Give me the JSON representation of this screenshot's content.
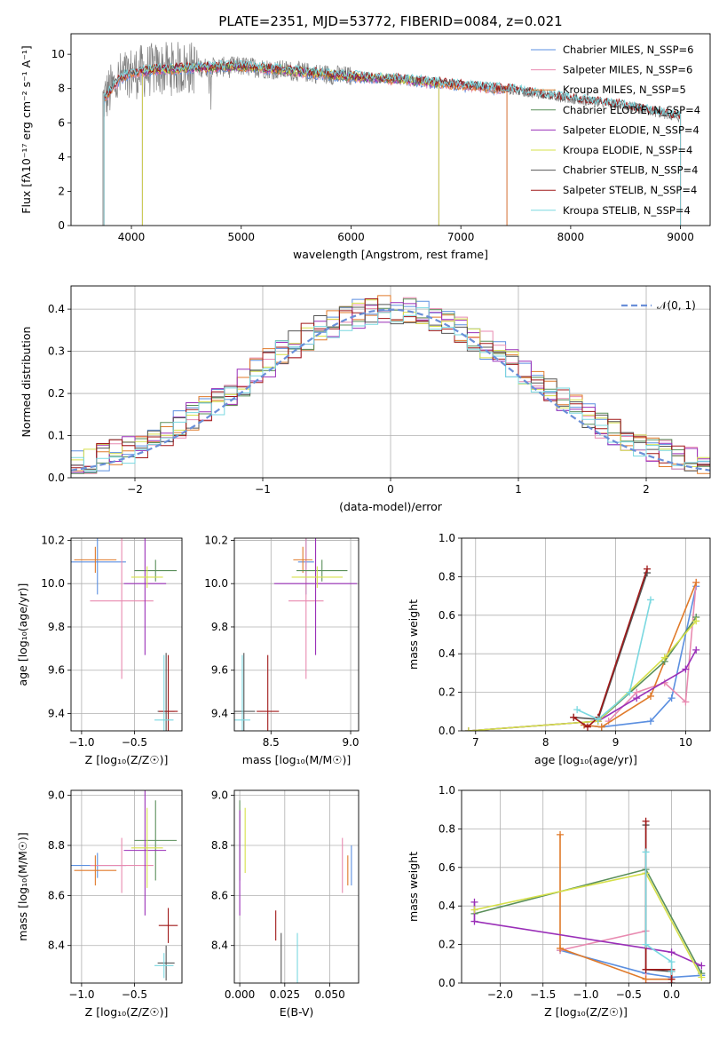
{
  "figure": {
    "title": "PLATE=2351, MJD=53772, FIBERID=0084, z=0.021"
  },
  "colors": {
    "Chabrier MILES": "#5b8fe0",
    "Salpeter MILES": "#e88ab0",
    "Kroupa MILES": "#e07a2a",
    "Chabrier ELODIE": "#5a8f5a",
    "Salpeter ELODIE": "#9a2fb8",
    "Kroupa ELODIE": "#d6e04a",
    "Chabrier STELIB": "#555555",
    "Salpeter STELIB": "#a01818",
    "Kroupa STELIB": "#7ad8e0",
    "normal": "#6a8fd8"
  },
  "chart_data": [
    {
      "id": "spectrum",
      "type": "line",
      "xlabel": "wavelength [Angstrom, rest frame]",
      "ylabel": "Flux [fλ10⁻¹⁷ erg cm⁻² s⁻¹ A⁻¹]",
      "xlim": [
        3450,
        9270
      ],
      "ylim": [
        0,
        11.2
      ],
      "xticks": [
        4000,
        5000,
        6000,
        7000,
        8000,
        9000
      ],
      "yticks": [
        0,
        2,
        4,
        6,
        8,
        10
      ],
      "legend_position": "upper-right",
      "legend": [
        "Chabrier MILES, N_SSP=6",
        "Salpeter MILES, N_SSP=6",
        "Kroupa MILES, N_SSP=5",
        "Chabrier ELODIE, N_SSP=4",
        "Salpeter ELODIE, N_SSP=4",
        "Kroupa ELODIE, N_SSP=4",
        "Chabrier STELIB, N_SSP=4",
        "Salpeter STELIB, N_SSP=4",
        "Kroupa STELIB, N_SSP=4"
      ],
      "data_range": [
        3740,
        9000
      ],
      "continuum": [
        [
          3740,
          7.3
        ],
        [
          3900,
          8.6
        ],
        [
          4000,
          8.9
        ],
        [
          4200,
          9.1
        ],
        [
          4500,
          9.2
        ],
        [
          5000,
          9.3
        ],
        [
          5500,
          9.0
        ],
        [
          6000,
          8.7
        ],
        [
          6500,
          8.5
        ],
        [
          7000,
          8.2
        ],
        [
          7500,
          7.9
        ],
        [
          8000,
          7.4
        ],
        [
          8500,
          7.0
        ],
        [
          9000,
          6.3
        ]
      ],
      "model_ranges": {
        "MILES": [
          3750,
          7420
        ],
        "ELODIE": [
          4100,
          6800
        ],
        "STELIB": [
          3750,
          9000
        ]
      }
    },
    {
      "id": "residuals",
      "type": "histogram",
      "xlabel": "(data-model)/error",
      "ylabel": "Normed distribution",
      "xlim": [
        -2.5,
        2.5
      ],
      "ylim": [
        0,
        0.455
      ],
      "xticks": [
        -2,
        -1,
        0,
        1,
        2
      ],
      "yticks": [
        0.0,
        0.1,
        0.2,
        0.3,
        0.4
      ],
      "bin_width": 0.1,
      "curve_label": "𝒩(0, 1)",
      "legend_position": "upper-right"
    },
    {
      "id": "age_vs_Z",
      "type": "errorbar",
      "xlabel": "Z [log₁₀(Z/Z☉)]",
      "ylabel": "age  [log₁₀(age/yr)]",
      "xlim": [
        -1.1,
        -0.05
      ],
      "ylim": [
        9.32,
        10.21
      ],
      "xticks": [
        -1.0,
        -0.5
      ],
      "yticks": [
        9.4,
        9.6,
        9.8,
        10.0,
        10.2
      ],
      "points": [
        {
          "model": "Chabrier MILES",
          "x": -0.85,
          "xerr": 0.27,
          "y": 10.1,
          "yerr": 0.15
        },
        {
          "model": "Salpeter MILES",
          "x": -0.62,
          "xerr": 0.3,
          "y": 9.92,
          "yerr": 0.36
        },
        {
          "model": "Kroupa MILES",
          "x": -0.87,
          "xerr": 0.2,
          "y": 10.11,
          "yerr": 0.06
        },
        {
          "model": "Chabrier ELODIE",
          "x": -0.3,
          "xerr": 0.2,
          "y": 10.06,
          "yerr": 0.05
        },
        {
          "model": "Salpeter ELODIE",
          "x": -0.4,
          "xerr": 0.2,
          "y": 10.0,
          "yerr": 0.33
        },
        {
          "model": "Kroupa ELODIE",
          "x": -0.38,
          "xerr": 0.15,
          "y": 10.03,
          "yerr": 0.05
        },
        {
          "model": "Chabrier STELIB",
          "x": -0.2,
          "xerr": 0.08,
          "y": 9.41,
          "yerr": 0.27
        },
        {
          "model": "Salpeter STELIB",
          "x": -0.18,
          "xerr": 0.09,
          "y": 9.41,
          "yerr": 0.26
        },
        {
          "model": "Kroupa STELIB",
          "x": -0.22,
          "xerr": 0.09,
          "y": 9.37,
          "yerr": 0.3
        }
      ]
    },
    {
      "id": "age_vs_mass",
      "type": "errorbar",
      "xlabel": "mass [log₁₀(M/M☉)]",
      "ylabel": "",
      "xlim": [
        8.27,
        9.05
      ],
      "ylim": [
        9.32,
        10.21
      ],
      "xticks": [
        8.5,
        9.0
      ],
      "yticks": [
        9.4,
        9.6,
        9.8,
        10.0,
        10.2
      ],
      "points": [
        {
          "model": "Chabrier MILES",
          "x": 8.72,
          "xerr": 0.05,
          "y": 10.1,
          "yerr": 0.15
        },
        {
          "model": "Salpeter MILES",
          "x": 8.72,
          "xerr": 0.11,
          "y": 9.92,
          "yerr": 0.36
        },
        {
          "model": "Kroupa MILES",
          "x": 8.7,
          "xerr": 0.06,
          "y": 10.11,
          "yerr": 0.06
        },
        {
          "model": "Chabrier ELODIE",
          "x": 8.82,
          "xerr": 0.16,
          "y": 10.06,
          "yerr": 0.05
        },
        {
          "model": "Salpeter ELODIE",
          "x": 8.78,
          "xerr": 0.26,
          "y": 10.0,
          "yerr": 0.33
        },
        {
          "model": "Kroupa ELODIE",
          "x": 8.79,
          "xerr": 0.16,
          "y": 10.03,
          "yerr": 0.05
        },
        {
          "model": "Chabrier STELIB",
          "x": 8.33,
          "xerr": 0.07,
          "y": 9.41,
          "yerr": 0.27
        },
        {
          "model": "Salpeter STELIB",
          "x": 8.48,
          "xerr": 0.07,
          "y": 9.41,
          "yerr": 0.26
        },
        {
          "model": "Kroupa STELIB",
          "x": 8.32,
          "xerr": 0.05,
          "y": 9.37,
          "yerr": 0.3
        }
      ]
    },
    {
      "id": "weight_vs_age",
      "type": "line",
      "xlabel": "age  [log₁₀(age/yr)]",
      "ylabel": "mass weight",
      "xlim": [
        6.8,
        10.35
      ],
      "ylim": [
        0,
        1.0
      ],
      "xticks": [
        7,
        8,
        9,
        10
      ],
      "yticks": [
        0.0,
        0.2,
        0.4,
        0.6,
        0.8,
        1.0
      ],
      "series": [
        {
          "model": "Chabrier MILES",
          "x": [
            8.55,
            8.8,
            9.5,
            9.8,
            10.15
          ],
          "y": [
            0.03,
            0.02,
            0.05,
            0.17,
            0.75
          ]
        },
        {
          "model": "Salpeter MILES",
          "x": [
            8.9,
            9.3,
            9.7,
            10.0,
            10.15
          ],
          "y": [
            0.05,
            0.2,
            0.25,
            0.15,
            0.77
          ]
        },
        {
          "model": "Kroupa MILES",
          "x": [
            8.55,
            8.8,
            9.5,
            10.15
          ],
          "y": [
            0.03,
            0.02,
            0.18,
            0.77
          ]
        },
        {
          "model": "Chabrier ELODIE",
          "x": [
            6.9,
            8.75,
            9.7,
            10.15
          ],
          "y": [
            0.0,
            0.05,
            0.36,
            0.59
          ]
        },
        {
          "model": "Salpeter ELODIE",
          "x": [
            6.9,
            8.75,
            9.3,
            10.0,
            10.15
          ],
          "y": [
            0.0,
            0.05,
            0.17,
            0.32,
            0.42
          ]
        },
        {
          "model": "Kroupa ELODIE",
          "x": [
            6.9,
            8.75,
            9.7,
            10.15
          ],
          "y": [
            0.0,
            0.05,
            0.38,
            0.57
          ]
        },
        {
          "model": "Chabrier STELIB",
          "x": [
            8.4,
            8.75,
            9.45
          ],
          "y": [
            0.07,
            0.06,
            0.82
          ]
        },
        {
          "model": "Salpeter STELIB",
          "x": [
            8.4,
            8.6,
            8.75,
            9.45
          ],
          "y": [
            0.07,
            0.02,
            0.07,
            0.84
          ]
        },
        {
          "model": "Kroupa STELIB",
          "x": [
            8.45,
            8.75,
            9.2,
            9.5
          ],
          "y": [
            0.11,
            0.06,
            0.2,
            0.68
          ]
        }
      ]
    },
    {
      "id": "mass_vs_Z",
      "type": "errorbar",
      "xlabel": "Z [log₁₀(Z/Z☉)]",
      "ylabel": "mass [log₁₀(M/M☉)]",
      "xlim": [
        -1.1,
        -0.05
      ],
      "ylim": [
        8.25,
        9.02
      ],
      "xticks": [
        -1.0,
        -0.5
      ],
      "yticks": [
        8.4,
        8.6,
        8.8,
        9.0
      ],
      "points": [
        {
          "model": "Chabrier MILES",
          "x": -0.85,
          "xerr": 0.27,
          "y": 8.72,
          "yerr": 0.05
        },
        {
          "model": "Salpeter MILES",
          "x": -0.62,
          "xerr": 0.3,
          "y": 8.72,
          "yerr": 0.11
        },
        {
          "model": "Kroupa MILES",
          "x": -0.87,
          "xerr": 0.2,
          "y": 8.7,
          "yerr": 0.06
        },
        {
          "model": "Chabrier ELODIE",
          "x": -0.3,
          "xerr": 0.2,
          "y": 8.82,
          "yerr": 0.16
        },
        {
          "model": "Salpeter ELODIE",
          "x": -0.4,
          "xerr": 0.2,
          "y": 8.78,
          "yerr": 0.26
        },
        {
          "model": "Kroupa ELODIE",
          "x": -0.38,
          "xerr": 0.15,
          "y": 8.79,
          "yerr": 0.16
        },
        {
          "model": "Chabrier STELIB",
          "x": -0.2,
          "xerr": 0.08,
          "y": 8.33,
          "yerr": 0.07
        },
        {
          "model": "Salpeter STELIB",
          "x": -0.18,
          "xerr": 0.09,
          "y": 8.48,
          "yerr": 0.07
        },
        {
          "model": "Kroupa STELIB",
          "x": -0.22,
          "xerr": 0.09,
          "y": 8.32,
          "yerr": 0.05
        }
      ]
    },
    {
      "id": "mass_vs_ebv",
      "type": "errorbar",
      "xlabel": "E(B-V)",
      "ylabel": "",
      "xlim": [
        -0.003,
        0.066
      ],
      "ylim": [
        8.25,
        9.02
      ],
      "xticks": [
        0.0,
        0.025,
        0.05
      ],
      "xticklabels": [
        "0.000",
        "0.025",
        "0.050"
      ],
      "yticks": [
        8.4,
        8.6,
        8.8,
        9.0
      ],
      "points": [
        {
          "model": "Chabrier MILES",
          "x": 0.062,
          "xerr": 0.0,
          "y": 8.72,
          "yerr": 0.08
        },
        {
          "model": "Salpeter MILES",
          "x": 0.057,
          "xerr": 0.0,
          "y": 8.72,
          "yerr": 0.11
        },
        {
          "model": "Kroupa MILES",
          "x": 0.06,
          "xerr": 0.0,
          "y": 8.7,
          "yerr": 0.06
        },
        {
          "model": "Chabrier ELODIE",
          "x": 0.0,
          "xerr": 0.0,
          "y": 8.82,
          "yerr": 0.16
        },
        {
          "model": "Salpeter ELODIE",
          "x": 0.0,
          "xerr": 0.0,
          "y": 8.73,
          "yerr": 0.21
        },
        {
          "model": "Kroupa ELODIE",
          "x": 0.003,
          "xerr": 0.0,
          "y": 8.82,
          "yerr": 0.13
        },
        {
          "model": "Chabrier STELIB",
          "x": 0.023,
          "xerr": 0.0,
          "y": 8.33,
          "yerr": 0.12
        },
        {
          "model": "Salpeter STELIB",
          "x": 0.02,
          "xerr": 0.0,
          "y": 8.48,
          "yerr": 0.06
        },
        {
          "model": "Kroupa STELIB",
          "x": 0.032,
          "xerr": 0.0,
          "y": 8.35,
          "yerr": 0.1
        }
      ]
    },
    {
      "id": "weight_vs_Z",
      "type": "line",
      "xlabel": "Z [log₁₀(Z/Z☉)]",
      "ylabel": "mass weight",
      "xlim": [
        -2.45,
        0.45
      ],
      "ylim": [
        0,
        1.0
      ],
      "xticks": [
        -2.0,
        -1.5,
        -1.0,
        -0.5,
        0.0
      ],
      "yticks": [
        0.0,
        0.2,
        0.4,
        0.6,
        0.8,
        1.0
      ],
      "series": [
        {
          "model": "Chabrier MILES",
          "x": [
            -1.3,
            -0.3,
            0.0,
            0.35
          ],
          "y": [
            0.17,
            0.05,
            0.03,
            0.04
          ]
        },
        {
          "model": "Salpeter MILES",
          "x": [
            -1.3,
            -0.3,
            -0.3,
            0.0
          ],
          "y": [
            0.17,
            0.27,
            0.0,
            0.0
          ]
        },
        {
          "model": "Kroupa MILES",
          "x": [
            -1.3,
            -1.3,
            -0.3,
            0.0
          ],
          "y": [
            0.77,
            0.18,
            0.02,
            0.02
          ]
        },
        {
          "model": "Chabrier ELODIE",
          "x": [
            -2.3,
            -0.3,
            0.35
          ],
          "y": [
            0.36,
            0.59,
            0.05
          ]
        },
        {
          "model": "Salpeter ELODIE",
          "x": [
            -2.3,
            -2.3,
            0.0,
            0.35
          ],
          "y": [
            0.42,
            0.32,
            0.16,
            0.09
          ]
        },
        {
          "model": "Kroupa ELODIE",
          "x": [
            -2.3,
            -0.3,
            0.35
          ],
          "y": [
            0.38,
            0.57,
            0.03
          ]
        },
        {
          "model": "Chabrier STELIB",
          "x": [
            -0.3,
            -0.3,
            0.0,
            0.0
          ],
          "y": [
            0.82,
            0.07,
            0.06,
            0.0
          ]
        },
        {
          "model": "Salpeter STELIB",
          "x": [
            -0.3,
            -0.3,
            0.0,
            0.0
          ],
          "y": [
            0.84,
            0.07,
            0.07,
            0.02
          ]
        },
        {
          "model": "Kroupa STELIB",
          "x": [
            -0.3,
            -0.3,
            0.0,
            0.0
          ],
          "y": [
            0.68,
            0.2,
            0.11,
            0.06
          ]
        }
      ]
    }
  ]
}
